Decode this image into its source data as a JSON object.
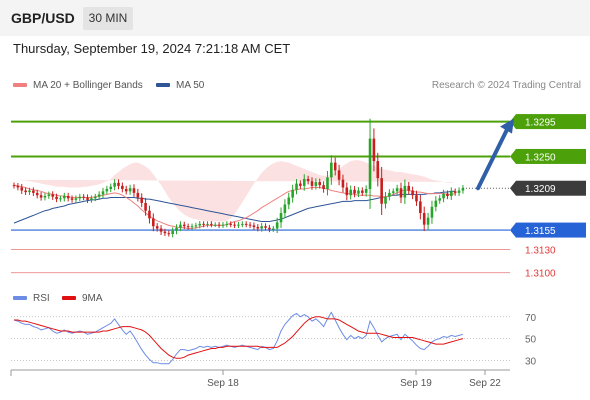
{
  "header": {
    "pair": "GBP/USD",
    "timeframe": "30 MIN"
  },
  "date": "Thursday, September 19, 2024 7:21:18 AM CET",
  "legend": {
    "ma": "MA 20 + Bollinger Bands",
    "ma50": "MA 50"
  },
  "credit": "Research © 2024 Trading Central",
  "rsi_legend": {
    "rsi": "RSI",
    "ma": "9MA"
  },
  "colors": {
    "resistance": "#4ca00a",
    "support": "#2563d6",
    "level_red": "#e03a3a",
    "current": "#3c3c3c",
    "bollinger": "#fadada",
    "ma20": "#f08080",
    "ma50": "#2f5597",
    "bull": "#27a52a",
    "bear": "#c81e1e",
    "rsi": "#6c8ce6",
    "rsi_ma": "#e01010",
    "arrow": "#2f5fa6"
  },
  "chart_data": [
    {
      "type": "candlestick",
      "symbol": "GBP/USD",
      "interval": "30 MIN",
      "x_tick_labels": [
        "Sep 18",
        "Sep 19",
        "Sep 22"
      ],
      "price_range": [
        1.3088,
        1.3328
      ],
      "current_price": {
        "label": "1.3209",
        "value": 1.3209
      },
      "levels": [
        {
          "label": "1.3295",
          "value": 1.3295,
          "kind": "resistance"
        },
        {
          "label": "1.3250",
          "value": 1.325,
          "kind": "resistance"
        },
        {
          "label": "1.3155",
          "value": 1.3155,
          "kind": "support"
        },
        {
          "label": "1.3130",
          "value": 1.313,
          "kind": "minor"
        },
        {
          "label": "1.3100",
          "value": 1.31,
          "kind": "minor"
        }
      ],
      "forecast": {
        "from": 1.3209,
        "to": 1.3295,
        "direction": "up"
      },
      "close": [
        1.3212,
        1.321,
        1.3206,
        1.3204,
        1.3206,
        1.3203,
        1.32,
        1.3197,
        1.3199,
        1.3201,
        1.3198,
        1.3195,
        1.3196,
        1.3199,
        1.3196,
        1.3194,
        1.3196,
        1.3198,
        1.3197,
        1.3194,
        1.3196,
        1.3198,
        1.3201,
        1.3205,
        1.3208,
        1.3211,
        1.3216,
        1.3212,
        1.3208,
        1.3205,
        1.3209,
        1.3203,
        1.3197,
        1.319,
        1.318,
        1.317,
        1.316,
        1.3157,
        1.3153,
        1.3151,
        1.315,
        1.3154,
        1.3158,
        1.3162,
        1.316,
        1.3159,
        1.316,
        1.3161,
        1.3163,
        1.3162,
        1.3163,
        1.3162,
        1.3162,
        1.3161,
        1.3162,
        1.3163,
        1.3162,
        1.3161,
        1.3162,
        1.3163,
        1.3162,
        1.3161,
        1.3159,
        1.3157,
        1.316,
        1.3158,
        1.3156,
        1.3157,
        1.3165,
        1.3177,
        1.3188,
        1.3197,
        1.3207,
        1.3215,
        1.3212,
        1.3221,
        1.3218,
        1.3212,
        1.3217,
        1.3213,
        1.3208,
        1.3223,
        1.3242,
        1.3232,
        1.322,
        1.321,
        1.32,
        1.3207,
        1.3202,
        1.3206,
        1.3203,
        1.3208,
        1.3273,
        1.3244,
        1.3222,
        1.3189,
        1.3198,
        1.3203,
        1.3205,
        1.3209,
        1.3197,
        1.3212,
        1.3206,
        1.32,
        1.3192,
        1.3177,
        1.3162,
        1.3171,
        1.3185,
        1.3193,
        1.3196,
        1.3202,
        1.3199,
        1.3205,
        1.3203,
        1.3206,
        1.3209
      ],
      "ma20": [
        1.3213,
        1.3212,
        1.3211,
        1.321,
        1.3208,
        1.3207,
        1.3206,
        1.3205,
        1.3203,
        1.3202,
        1.3201,
        1.32,
        1.3199,
        1.3199,
        1.3198,
        1.3197,
        1.3197,
        1.3197,
        1.3197,
        1.3197,
        1.3197,
        1.3198,
        1.3199,
        1.32,
        1.3201,
        1.3202,
        1.3203,
        1.3202,
        1.32,
        1.3197,
        1.3194,
        1.319,
        1.3186,
        1.3181,
        1.3177,
        1.3173,
        1.317,
        1.3167,
        1.3165,
        1.3163,
        1.3161,
        1.316,
        1.3159,
        1.3158,
        1.3158,
        1.3157,
        1.3157,
        1.3158,
        1.3159,
        1.316,
        1.3161,
        1.3161,
        1.3161,
        1.3161,
        1.3161,
        1.3162,
        1.3164,
        1.3166,
        1.3167,
        1.3169,
        1.3171,
        1.3174,
        1.3177,
        1.318,
        1.3184,
        1.3187,
        1.319,
        1.3193,
        1.3196,
        1.3199,
        1.3202,
        1.3205,
        1.3206,
        1.3207,
        1.3208,
        1.3208,
        1.3209,
        1.321,
        1.321,
        1.321,
        1.3209,
        1.3208,
        1.3206,
        1.3205,
        1.3204,
        1.3203,
        1.3202,
        1.3202,
        1.3201,
        1.32,
        1.32,
        1.32,
        1.32,
        1.3199,
        1.3199,
        1.3198,
        1.3198,
        1.3199,
        1.3201,
        1.3203,
        1.3205,
        1.3207,
        1.3206,
        1.3205,
        1.3204,
        1.3204,
        1.3203,
        1.3202,
        1.3202,
        1.3202,
        1.3202,
        1.3202,
        1.3201,
        1.3201,
        1.3202
      ],
      "bb_upper": [
        1.322,
        1.322,
        1.3219,
        1.3219,
        1.3218,
        1.3217,
        1.3216,
        1.3215,
        1.3214,
        1.3213,
        1.3212,
        1.3211,
        1.3211,
        1.3211,
        1.321,
        1.321,
        1.321,
        1.321,
        1.3211,
        1.3211,
        1.3212,
        1.3213,
        1.3214,
        1.3216,
        1.3218,
        1.3221,
        1.3226,
        1.323,
        1.3234,
        1.3237,
        1.324,
        1.3242,
        1.3242,
        1.324,
        1.3237,
        1.3233,
        1.3227,
        1.322,
        1.3213,
        1.3205,
        1.3197,
        1.319,
        1.3184,
        1.3179,
        1.3175,
        1.3172,
        1.317,
        1.3169,
        1.3168,
        1.3167,
        1.3167,
        1.3166,
        1.3166,
        1.3166,
        1.3166,
        1.3167,
        1.317,
        1.3176,
        1.3183,
        1.3191,
        1.3199,
        1.3207,
        1.3215,
        1.3222,
        1.3229,
        1.3234,
        1.3238,
        1.3241,
        1.3243,
        1.3244,
        1.3243,
        1.3242,
        1.324,
        1.3238,
        1.3236,
        1.3234,
        1.3232,
        1.323,
        1.3228,
        1.3226,
        1.3225,
        1.3225,
        1.3227,
        1.323,
        1.3234,
        1.3238,
        1.3241,
        1.3244,
        1.3245,
        1.3245,
        1.3244,
        1.3242,
        1.324,
        1.3238,
        1.3236,
        1.3234,
        1.3233,
        1.3232,
        1.3231,
        1.323,
        1.323,
        1.3229,
        1.3228,
        1.3227,
        1.3226,
        1.3225,
        1.3224,
        1.3222,
        1.322,
        1.3219,
        1.3218,
        1.3217,
        1.3216,
        1.3216,
        1.3217
      ],
      "bb_lower": [
        1.3203,
        1.3202,
        1.3201,
        1.3199,
        1.3197,
        1.3195,
        1.3194,
        1.3193,
        1.3192,
        1.3191,
        1.319,
        1.3189,
        1.3188,
        1.3187,
        1.3186,
        1.3185,
        1.3185,
        1.3184,
        1.3184,
        1.3183,
        1.3183,
        1.3183,
        1.3183,
        1.3184,
        1.3184,
        1.3184,
        1.3181,
        1.3176,
        1.317,
        1.3163,
        1.3156,
        1.315,
        1.3145,
        1.3142,
        1.314,
        1.3139,
        1.3139,
        1.314,
        1.3141,
        1.3142,
        1.3143,
        1.3144,
        1.3145,
        1.3146,
        1.3147,
        1.3148,
        1.3148,
        1.3149,
        1.315,
        1.3151,
        1.3152,
        1.3153,
        1.3154,
        1.3155,
        1.3156,
        1.3157,
        1.3158,
        1.3158,
        1.3156,
        1.3154,
        1.3152,
        1.3152,
        1.3152,
        1.3153,
        1.3155,
        1.3157,
        1.316,
        1.3163,
        1.3166,
        1.3168,
        1.317,
        1.3172,
        1.3174,
        1.3175,
        1.3177,
        1.318,
        1.3182,
        1.3181,
        1.3179,
        1.3176,
        1.3172,
        1.3168,
        1.3165,
        1.3162,
        1.316,
        1.3158,
        1.3156,
        1.3154,
        1.3152,
        1.3151,
        1.315,
        1.315,
        1.315,
        1.315,
        1.315,
        1.315,
        1.3151,
        1.3152,
        1.3153,
        1.3155,
        1.3157,
        1.3159,
        1.316,
        1.316,
        1.3159,
        1.3158,
        1.3157,
        1.3156,
        1.3155,
        1.3155,
        1.3156,
        1.3157,
        1.3159,
        1.316,
        1.3162
      ],
      "ma50": [
        1.3164,
        1.3166,
        1.3168,
        1.317,
        1.3172,
        1.3174,
        1.3176,
        1.3178,
        1.318,
        1.3181,
        1.3183,
        1.3184,
        1.3185,
        1.3186,
        1.3188,
        1.3189,
        1.319,
        1.3191,
        1.3192,
        1.3193,
        1.3194,
        1.3194,
        1.3195,
        1.3196,
        1.3196,
        1.3197,
        1.3197,
        1.3197,
        1.3197,
        1.3197,
        1.3197,
        1.3197,
        1.3196,
        1.3196,
        1.3195,
        1.3195,
        1.3194,
        1.3193,
        1.3192,
        1.3191,
        1.319,
        1.3189,
        1.3188,
        1.3187,
        1.3186,
        1.3185,
        1.3184,
        1.3183,
        1.3182,
        1.3181,
        1.318,
        1.3179,
        1.3178,
        1.3177,
        1.3176,
        1.3175,
        1.3174,
        1.3173,
        1.3172,
        1.3171,
        1.317,
        1.3169,
        1.3168,
        1.3167,
        1.3166,
        1.3166,
        1.3166,
        1.3167,
        1.3168,
        1.3169,
        1.3171,
        1.3173,
        1.3175,
        1.3177,
        1.3179,
        1.3181,
        1.3183,
        1.3184,
        1.3185,
        1.3186,
        1.3187,
        1.3188,
        1.3189,
        1.319,
        1.3191,
        1.3192,
        1.3192,
        1.3192,
        1.3193,
        1.3193,
        1.3193,
        1.3193,
        1.3194,
        1.3195,
        1.3196,
        1.3197,
        1.3198,
        1.3199,
        1.32,
        1.32,
        1.3201,
        1.3201,
        1.3201,
        1.3201,
        1.3201,
        1.3201,
        1.3201,
        1.3202,
        1.3202,
        1.3203,
        1.3203,
        1.3204,
        1.3204,
        1.3205,
        1.3205
      ]
    },
    {
      "type": "line",
      "title": "RSI",
      "y_tick_labels": [
        "70",
        "50",
        "30"
      ],
      "ylim": [
        25,
        78
      ],
      "series": [
        {
          "name": "RSI",
          "values": [
            67,
            66,
            64,
            63,
            63,
            61,
            60,
            58,
            59,
            60,
            57,
            55,
            56,
            58,
            56,
            55,
            56,
            57,
            56,
            54,
            55,
            56,
            58,
            60,
            62,
            64,
            68,
            63,
            58,
            54,
            57,
            52,
            46,
            40,
            35,
            31,
            28,
            28,
            27,
            27,
            27,
            31,
            36,
            40,
            40,
            39,
            40,
            41,
            43,
            42,
            43,
            42,
            43,
            42,
            43,
            44,
            43,
            42,
            43,
            44,
            43,
            42,
            41,
            40,
            43,
            42,
            40,
            41,
            48,
            57,
            63,
            67,
            71,
            73,
            70,
            72,
            70,
            66,
            68,
            65,
            61,
            68,
            74,
            67,
            60,
            54,
            49,
            53,
            50,
            52,
            50,
            53,
            66,
            60,
            53,
            47,
            50,
            52,
            53,
            54,
            49,
            54,
            51,
            48,
            44,
            41,
            40,
            43,
            47,
            49,
            50,
            52,
            51,
            53,
            52,
            53,
            54
          ]
        },
        {
          "name": "9MA",
          "values": [
            67,
            67,
            66,
            66,
            65,
            64,
            63,
            62,
            61,
            60,
            59,
            58,
            57,
            57,
            57,
            56,
            56,
            56,
            56,
            56,
            56,
            56,
            56,
            57,
            57,
            58,
            59,
            60,
            61,
            61,
            61,
            60,
            59,
            58,
            56,
            53,
            49,
            45,
            41,
            38,
            35,
            33,
            32,
            32,
            33,
            35,
            36,
            37,
            38,
            39,
            40,
            41,
            41,
            42,
            42,
            43,
            43,
            43,
            43,
            43,
            43,
            43,
            43,
            43,
            42,
            42,
            42,
            42,
            42,
            44,
            46,
            49,
            52,
            56,
            60,
            64,
            67,
            69,
            70,
            70,
            69,
            68,
            68,
            68,
            67,
            65,
            63,
            61,
            59,
            57,
            56,
            55,
            55,
            55,
            55,
            54,
            53,
            52,
            51,
            51,
            51,
            51,
            51,
            51,
            50,
            49,
            48,
            47,
            46,
            45,
            45,
            45,
            46,
            47,
            48,
            49,
            50
          ]
        }
      ]
    }
  ]
}
